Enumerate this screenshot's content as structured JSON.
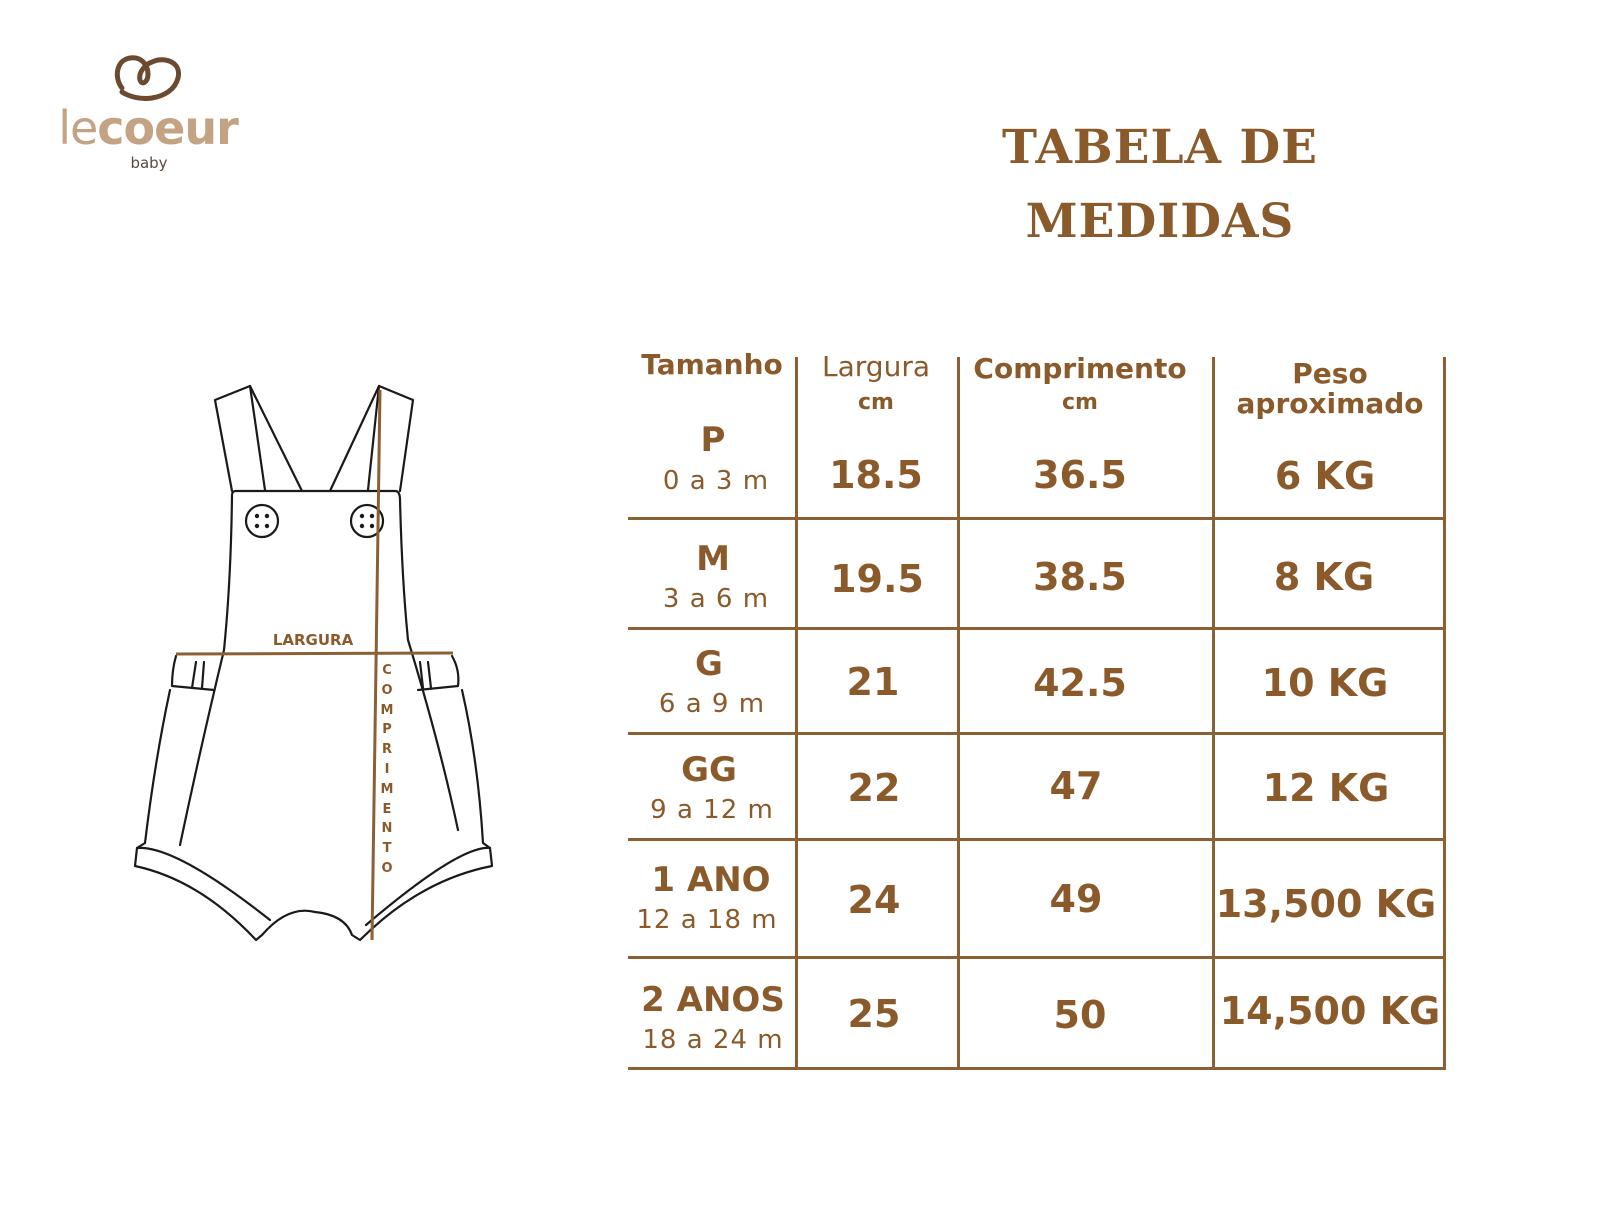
{
  "brand": {
    "name_light": "le",
    "name_bold": "coeur",
    "sub": "baby",
    "logo_icon": "heart-loop-icon"
  },
  "title": {
    "line1": "TABELA DE",
    "line2": "MEDIDAS"
  },
  "diagram": {
    "width_label": "LARGURA",
    "length_label": "COMPRIMENTO"
  },
  "table": {
    "headers": {
      "size": "Tamanho",
      "width": "Largura",
      "width_unit": "cm",
      "length": "Comprimento",
      "length_unit": "cm",
      "weight_line1": "Peso",
      "weight_line2": "aproximado"
    },
    "rows": [
      {
        "size": "P",
        "age": "0 a 3 m",
        "width": "18.5",
        "length": "36.5",
        "weight": "6 KG"
      },
      {
        "size": "M",
        "age": "3 a 6 m",
        "width": "19.5",
        "length": "38.5",
        "weight": "8 KG"
      },
      {
        "size": "G",
        "age": "6 a 9 m",
        "width": "21",
        "length": "42.5",
        "weight": "10 KG"
      },
      {
        "size": "GG",
        "age": "9 a 12 m",
        "width": "22",
        "length": "47",
        "weight": "12 KG"
      },
      {
        "size": "1 ANO",
        "age": "12 a 18 m",
        "width": "24",
        "length": "49",
        "weight": "13,500 KG"
      },
      {
        "size": "2 ANOS",
        "age": "18 a 24 m",
        "width": "25",
        "length": "50",
        "weight": "14,500 KG"
      }
    ]
  },
  "colors": {
    "accent": "#8a5a2b",
    "logo": "#c4a384",
    "logo_icon": "#6b4a30",
    "line": "#8b6035"
  }
}
